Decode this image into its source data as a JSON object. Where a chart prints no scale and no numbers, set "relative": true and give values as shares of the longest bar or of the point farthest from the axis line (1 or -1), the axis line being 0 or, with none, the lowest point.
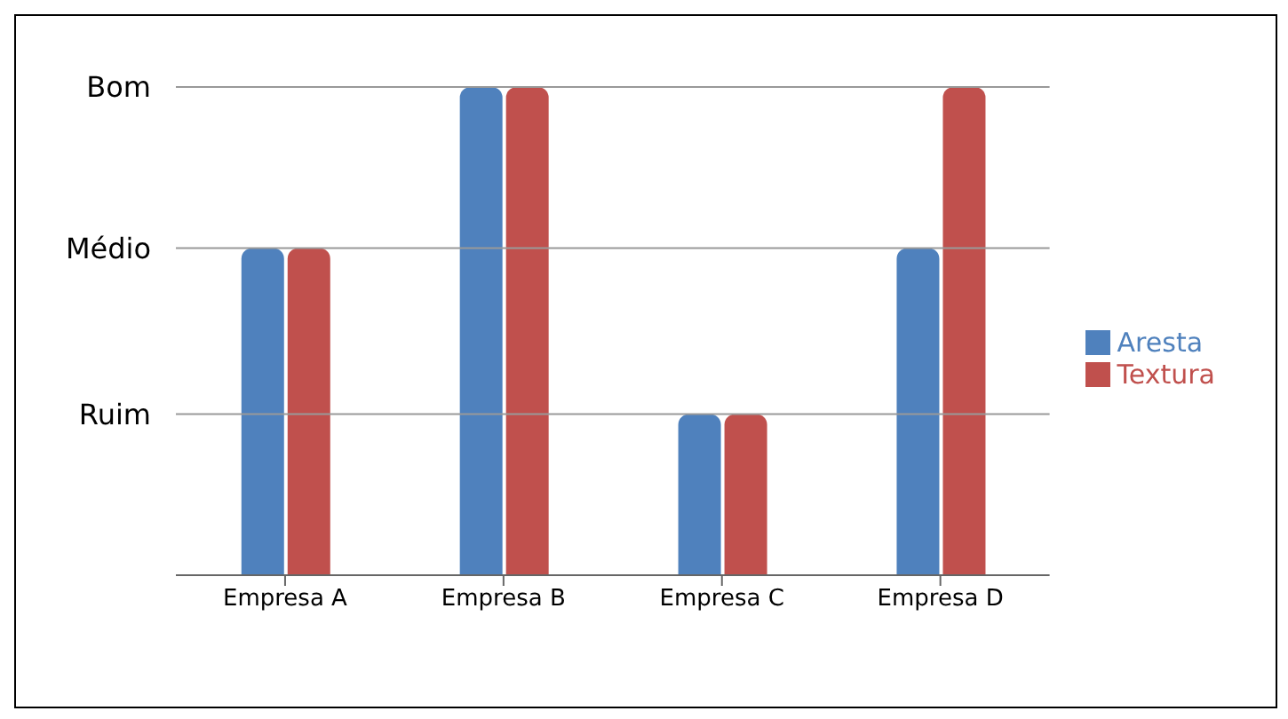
{
  "chart_data": {
    "type": "bar",
    "relative": true,
    "categories": [
      "Empresa A",
      "Empresa B",
      "Empresa C",
      "Empresa D"
    ],
    "series": [
      {
        "name": "Aresta",
        "color": "#4f81bd",
        "values": [
          0.67,
          1,
          0.33,
          0.67
        ]
      },
      {
        "name": "Textura",
        "color": "#c0504d",
        "values": [
          0.67,
          1,
          0.33,
          1
        ]
      }
    ],
    "ref_lines": [
      {
        "axis": "y",
        "value": 0.33,
        "label": "Ruim",
        "color": "#999999"
      },
      {
        "axis": "y",
        "value": 0.67,
        "label": "Médio",
        "color": "#999999"
      },
      {
        "axis": "y",
        "value": 1,
        "label": "Bom",
        "color": "#999999"
      }
    ],
    "legend": "right"
  }
}
